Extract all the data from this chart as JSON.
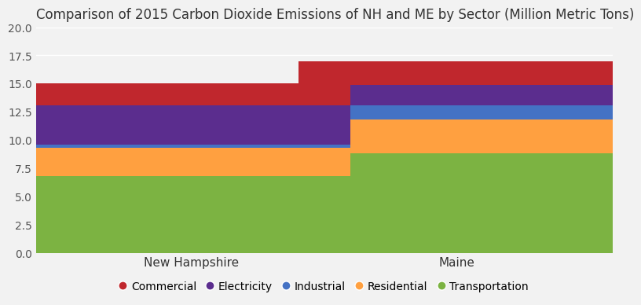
{
  "title": "Comparison of 2015 Carbon Dioxide Emissions of NH and ME by Sector (Million Metric Tons)",
  "categories": [
    "New Hampshire",
    "Maine"
  ],
  "sectors": [
    "Transportation",
    "Residential",
    "Industrial",
    "Electricity",
    "Commercial"
  ],
  "values": {
    "New Hampshire": [
      6.8,
      2.5,
      0.3,
      3.5,
      1.9
    ],
    "Maine": [
      8.8,
      3.0,
      1.3,
      1.8,
      2.1
    ]
  },
  "colors": {
    "Transportation": "#7CB342",
    "Residential": "#FFA040",
    "Industrial": "#4472C4",
    "Electricity": "#5B2D8E",
    "Commercial": "#C0272D"
  },
  "legend_order": [
    "Commercial",
    "Electricity",
    "Industrial",
    "Residential",
    "Transportation"
  ],
  "legend_colors": {
    "Commercial": "#C0272D",
    "Electricity": "#5B2D8E",
    "Industrial": "#4472C4",
    "Residential": "#FFA040",
    "Transportation": "#7CB342"
  },
  "ylim": [
    0,
    20
  ],
  "yticks": [
    0,
    2.5,
    5,
    7.5,
    10,
    12.5,
    15,
    17.5,
    20
  ],
  "background_color": "#F2F2F2",
  "plot_bg_color": "#F2F2F2",
  "title_fontsize": 12,
  "bar_width": 0.55,
  "x_positions": [
    0.27,
    0.73
  ]
}
